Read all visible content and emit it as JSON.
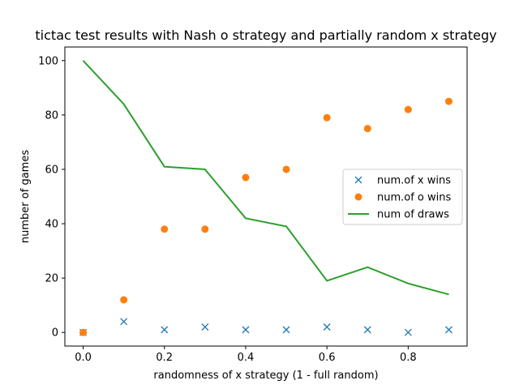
{
  "chart_data": {
    "type": "scatter",
    "title": "tictac test results with Nash o strategy and partially random x strategy",
    "xlabel": "randomness of x strategy (1 - full random)",
    "ylabel": "number of games",
    "xlim": [
      -0.045,
      0.945
    ],
    "ylim": [
      -5,
      105
    ],
    "xticks": [
      0.0,
      0.2,
      0.4,
      0.6,
      0.8
    ],
    "xtick_labels": [
      "0.0",
      "0.2",
      "0.4",
      "0.6",
      "0.8"
    ],
    "yticks": [
      0,
      20,
      40,
      60,
      80,
      100
    ],
    "ytick_labels": [
      "0",
      "20",
      "40",
      "60",
      "80",
      "100"
    ],
    "x": [
      0.0,
      0.1,
      0.2,
      0.3,
      0.4,
      0.5,
      0.6,
      0.7,
      0.8,
      0.9
    ],
    "series": [
      {
        "name": "num.of x wins",
        "kind": "scatter",
        "marker": "x",
        "color": "#1f77b4",
        "values": [
          0,
          4,
          1,
          2,
          1,
          1,
          2,
          1,
          0,
          1
        ]
      },
      {
        "name": "num.of o wins",
        "kind": "scatter",
        "marker": "circle",
        "color": "#ff7f0e",
        "values": [
          0,
          12,
          38,
          38,
          57,
          60,
          79,
          75,
          82,
          85
        ]
      },
      {
        "name": "num of draws",
        "kind": "line",
        "color": "#2ca02c",
        "values": [
          100,
          84,
          61,
          60,
          42,
          39,
          19,
          24,
          18,
          14
        ]
      }
    ],
    "legend_position": "center-right",
    "grid": false
  }
}
